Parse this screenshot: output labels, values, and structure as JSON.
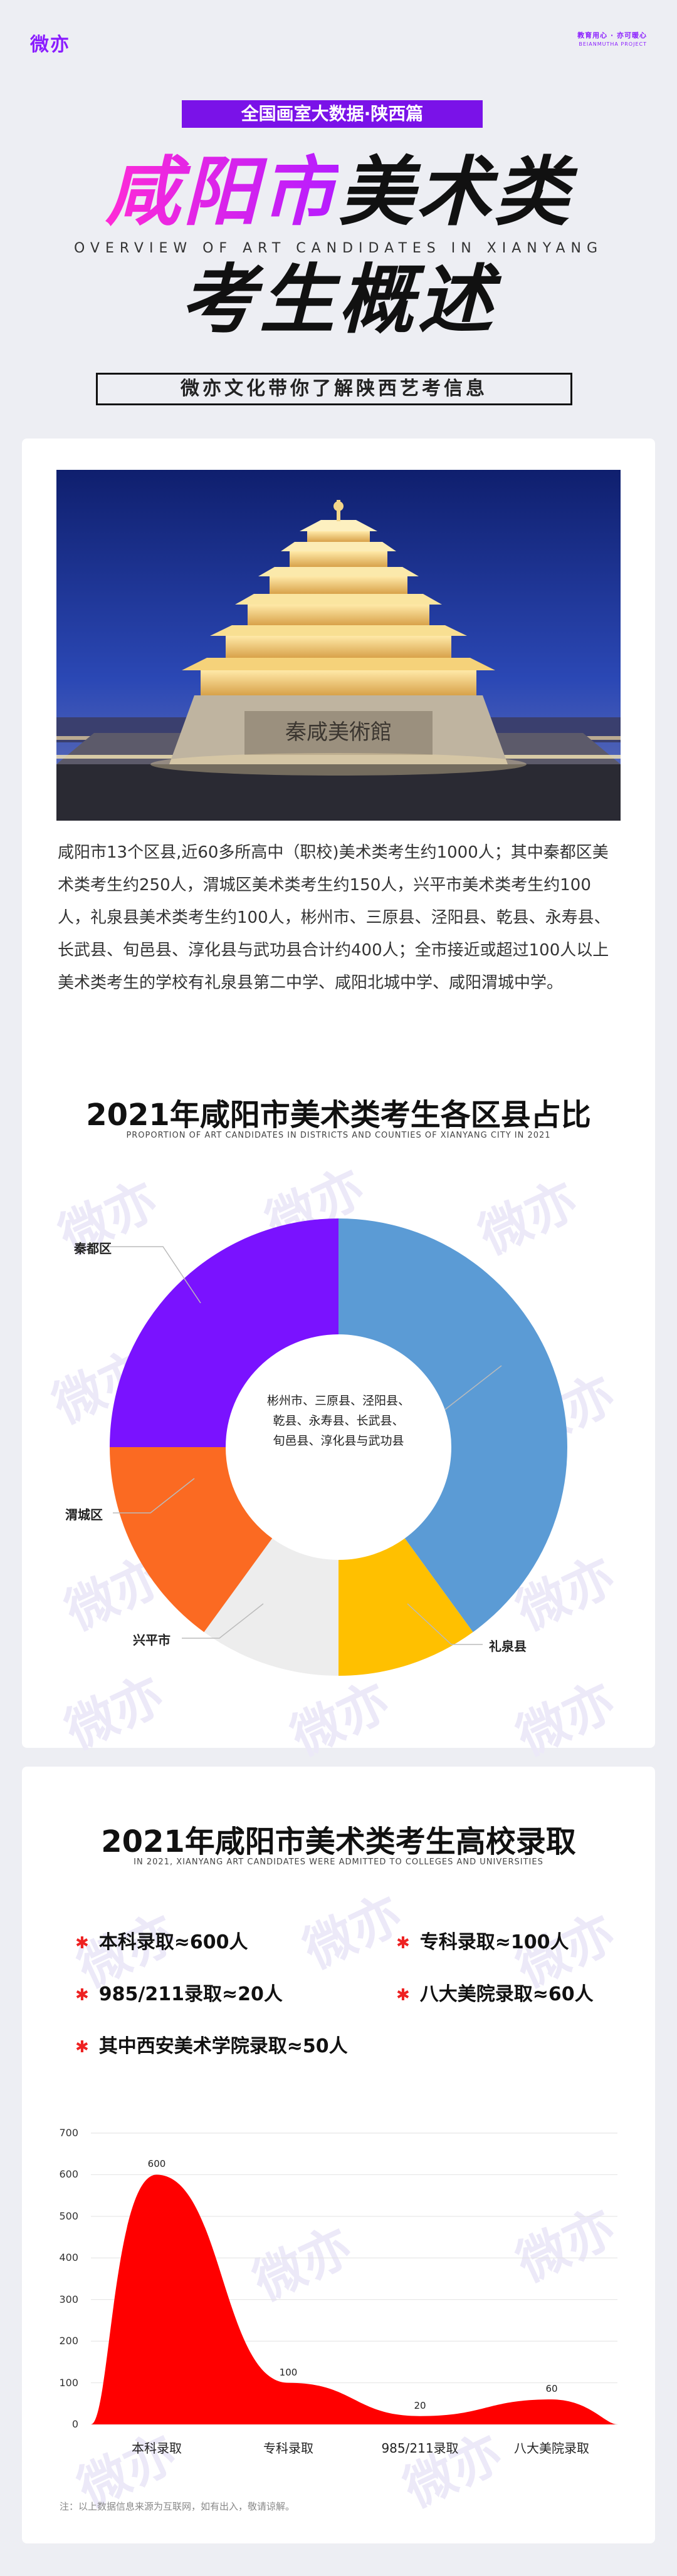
{
  "header": {
    "logo": "微亦",
    "slogan_cn": "教育用心 · 亦可暖心",
    "slogan_en": "BEIANMUTHA PROJECT"
  },
  "topic_tag": "全国画室大数据·陕西篇",
  "title_line1_pink": "咸阳市",
  "title_line1_black": "美术类",
  "title_en": "OVERVIEW OF ART CANDIDATES IN XIANYANG",
  "title_line2": "考生概述",
  "subtitle": "微亦文化带你了解陕西艺考信息",
  "intro": "咸阳市13个区县,近60多所高中（职校)美术类考生约1000人；其中秦都区美术类考生约250人，渭城区美术类考生约150人，兴平市美术类考生约100人，礼泉县美术类考生约100人，彬州市、三原县、泾阳县、乾县、永寿县、长武县、旬邑县、淳化县与武功县合计约400人；全市接近或超过100人以上美术类考生的学校有礼泉县第二中学、咸阳北城中学、咸阳渭城中学。",
  "section1": {
    "title": "2021年咸阳市美术类考生各区县占比",
    "subtitle_en": "PROPORTION OF ART CANDIDATES IN DISTRICTS AND COUNTIES OF XIANYANG CITY IN 2021"
  },
  "donut_center_lines": [
    "彬州市、三原县、泾阳县、",
    "乾县、永寿县、长武县、",
    "旬邑县、淳化县与武功县"
  ],
  "section2": {
    "title": "2021年咸阳市美术类考生高校录取",
    "subtitle_en": "IN 2021, XIANYANG ART CANDIDATES WERE ADMITTED TO COLLEGES AND UNIVERSITIES"
  },
  "bullets": {
    "b1": "本科录取≈600人",
    "b2": "专科录取≈100人",
    "b3": "985/211录取≈20人",
    "b4": "八大美院录取≈60人",
    "b5": "其中西安美术学院录取≈50人"
  },
  "footnote": "注：以上数据信息来源为互联网，如有出入，敬请谅解。",
  "colors": {
    "purple": "#7a12e8",
    "donut_blue": "#5b9bd5",
    "donut_yellow": "#ffc000",
    "donut_grey": "#ededed",
    "donut_orange": "#fb6a22",
    "donut_purple": "#7a12ff",
    "area_red": "#ff0000"
  },
  "chart_data": [
    {
      "type": "pie",
      "donut": true,
      "title": "2021年咸阳市美术类考生各区县占比",
      "slices": [
        {
          "label": "彬州市、三原县、泾阳县、乾县、永寿县、长武县、旬邑县、淳化县与武功县",
          "value": 400,
          "color": "#5b9bd5"
        },
        {
          "label": "礼泉县",
          "value": 100,
          "color": "#ffc000"
        },
        {
          "label": "兴平市",
          "value": 100,
          "color": "#ededed"
        },
        {
          "label": "渭城区",
          "value": 150,
          "color": "#fb6a22"
        },
        {
          "label": "秦都区",
          "value": 250,
          "color": "#7a12ff"
        }
      ]
    },
    {
      "type": "area",
      "title": "2021年咸阳市美术类考生高校录取",
      "categories": [
        "本科录取",
        "专科录取",
        "985/211录取",
        "八大美院录取"
      ],
      "values": [
        600,
        100,
        20,
        60
      ],
      "yticks": [
        0,
        100,
        200,
        300,
        400,
        500,
        600,
        700
      ],
      "ylim": [
        0,
        700
      ],
      "smooth": true,
      "data_labels": true
    }
  ]
}
